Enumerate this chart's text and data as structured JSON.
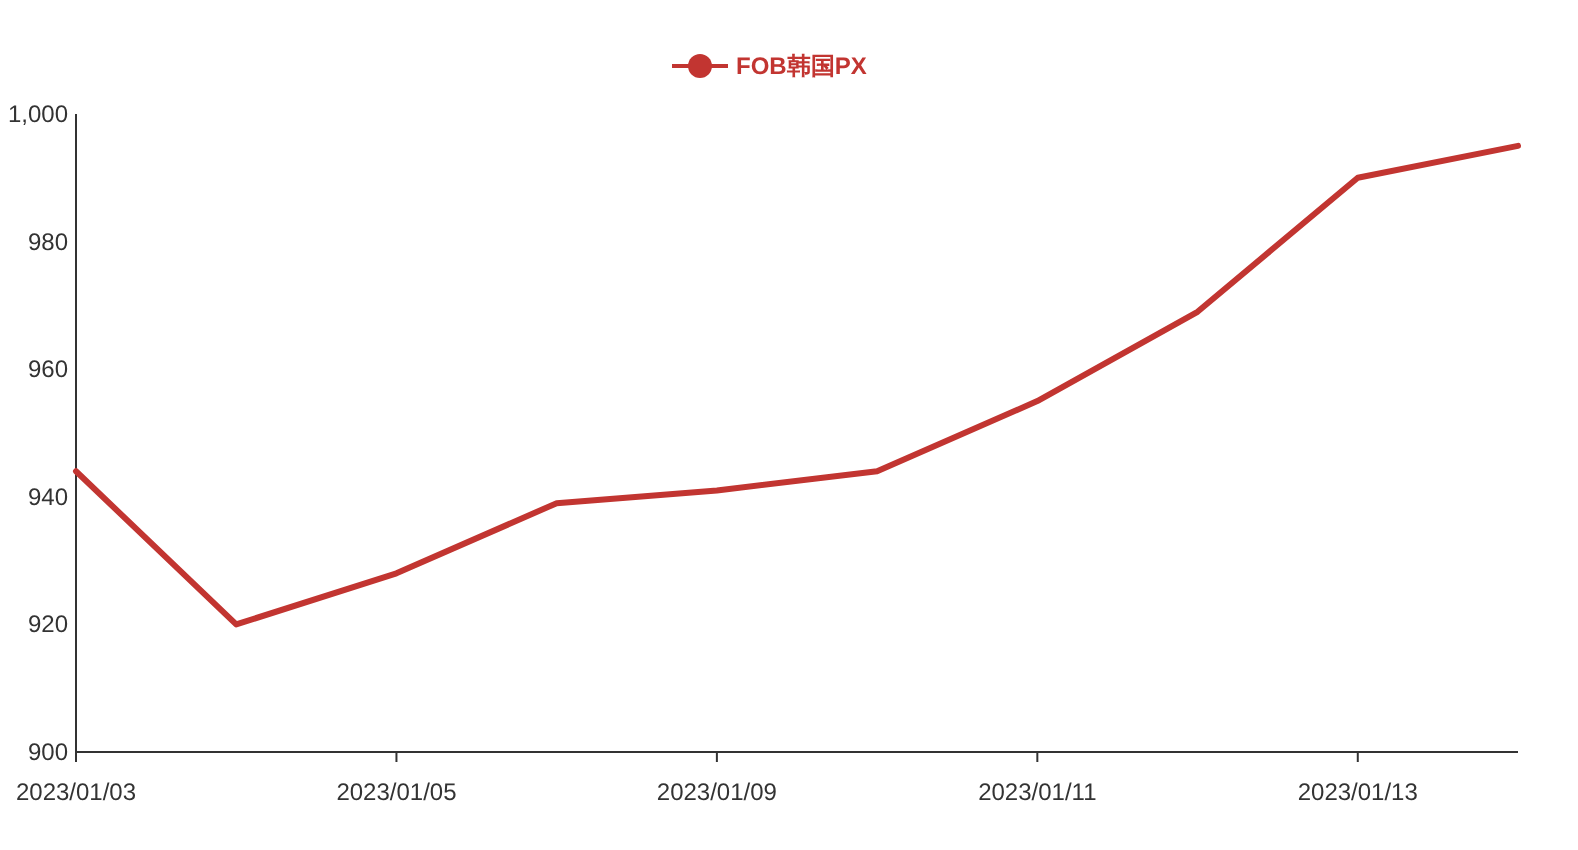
{
  "chart_data": {
    "type": "line",
    "categories": [
      "2023/01/03",
      null,
      "2023/01/05",
      null,
      "2023/01/09",
      null,
      "2023/01/11",
      null,
      "2023/01/13",
      null
    ],
    "series": [
      {
        "name": "FOB韩国PX",
        "color": "#c23531",
        "values": [
          944,
          920,
          928,
          939,
          941,
          944,
          955,
          969,
          990,
          995
        ]
      }
    ],
    "ylim": [
      900,
      1000
    ],
    "yticks": [
      900,
      920,
      940,
      960,
      980,
      {
        "value": 1000,
        "label": "1,000"
      }
    ],
    "grid": false,
    "legend": "top",
    "marker": "none",
    "line_style": "solid"
  }
}
